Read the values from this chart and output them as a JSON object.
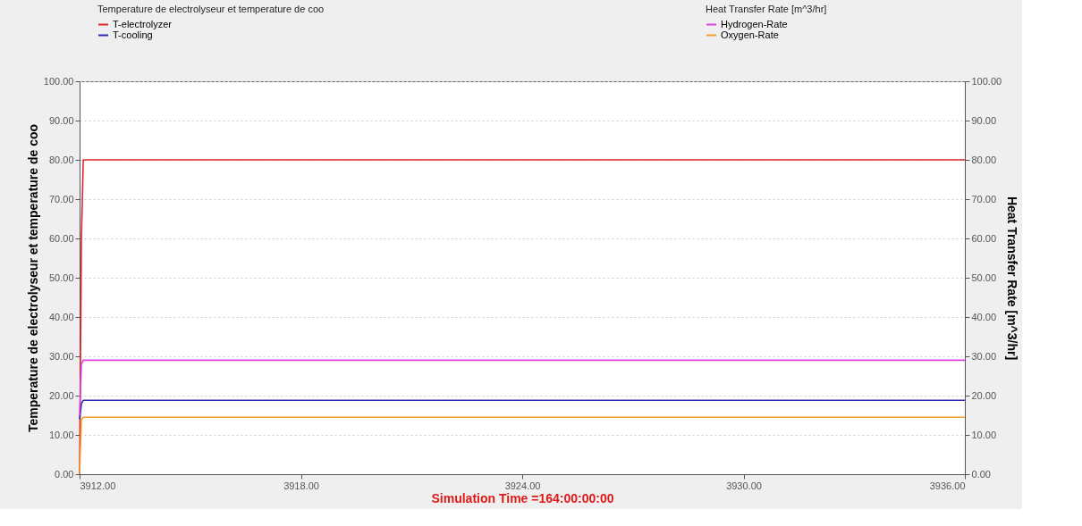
{
  "chart_data": {
    "type": "line",
    "xlabel": "Simulation Time =164:00:00:00",
    "ylabel": "Temperature de electrolyseur et temperature de coo",
    "y2label": "Heat Transfer Rate [m^3/hr]",
    "legend_title": [
      "Temperature de electrolyseur et temperature de coo",
      "Heat Transfer Rate [m^3/hr]"
    ],
    "x": [
      3912,
      3912.05,
      3912.1,
      3936
    ],
    "series": [
      {
        "name": "T-electrolyzer",
        "color": "#e0282c",
        "values": [
          0,
          60,
          80,
          80
        ]
      },
      {
        "name": "T-cooling",
        "color": "#2a2ab4",
        "values": [
          14,
          18,
          18.8,
          18.8
        ]
      },
      {
        "name": "Hydrogen-Rate",
        "color": "#e040e0",
        "values": [
          15,
          28,
          29,
          29
        ],
        "axis": "y2"
      },
      {
        "name": "Oxygen-Rate",
        "color": "#f0a030",
        "values": [
          0,
          14,
          14.5,
          14.5
        ],
        "axis": "y2"
      }
    ],
    "xlim": [
      3912,
      3936
    ],
    "xticks": [
      {
        "value": 3912,
        "label": "3912.00"
      },
      {
        "value": 3918,
        "label": "3918.00"
      },
      {
        "value": 3924,
        "label": "3924.00"
      },
      {
        "value": 3930,
        "label": "3930.00"
      },
      {
        "value": 3936,
        "label": "3936.00"
      }
    ],
    "ylim": [
      0,
      100
    ],
    "yticks": [
      {
        "value": 0,
        "label": "0.00"
      },
      {
        "value": 10,
        "label": "10.00"
      },
      {
        "value": 20,
        "label": "20.00"
      },
      {
        "value": 30,
        "label": "30.00"
      },
      {
        "value": 40,
        "label": "40.00"
      },
      {
        "value": 50,
        "label": "50.00"
      },
      {
        "value": 60,
        "label": "60.00"
      },
      {
        "value": 70,
        "label": "70.00"
      },
      {
        "value": 80,
        "label": "80.00"
      },
      {
        "value": 90,
        "label": "90.00"
      },
      {
        "value": 100,
        "label": "100.00"
      }
    ],
    "y2lim": [
      0,
      100
    ],
    "y2ticks": [
      {
        "value": 0,
        "label": "0.00"
      },
      {
        "value": 10,
        "label": "10.00"
      },
      {
        "value": 20,
        "label": "20.00"
      },
      {
        "value": 30,
        "label": "30.00"
      },
      {
        "value": 40,
        "label": "40.00"
      },
      {
        "value": 50,
        "label": "50.00"
      },
      {
        "value": 60,
        "label": "60.00"
      },
      {
        "value": 70,
        "label": "70.00"
      },
      {
        "value": 80,
        "label": "80.00"
      },
      {
        "value": 90,
        "label": "90.00"
      },
      {
        "value": 100,
        "label": "100.00"
      }
    ],
    "grid": "y",
    "legend": "top",
    "marker": "none",
    "line_style": "solid"
  }
}
